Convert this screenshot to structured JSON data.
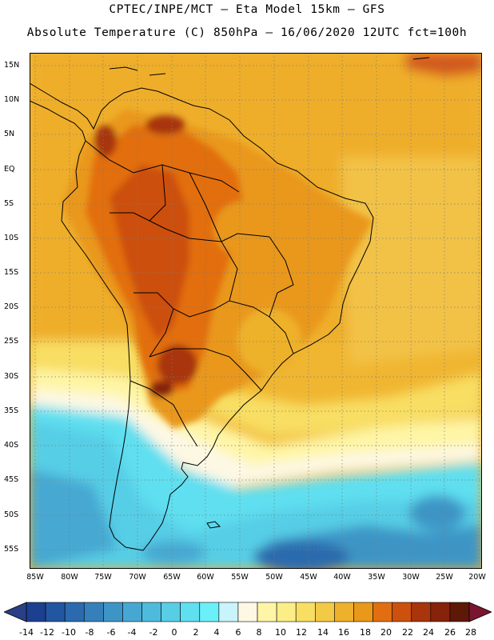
{
  "header": {
    "title_line1": "CPTEC/INPE/MCT –  Eta Model 15km – GFS",
    "title_line2": "Absolute Temperature (C) 850hPa – 16/06/2020 12UTC fct=100h"
  },
  "map": {
    "region": "South America",
    "variable": "Absolute Temperature",
    "units": "C",
    "level": "850hPa",
    "lat_labels": [
      "15N",
      "10N",
      "5N",
      "EQ",
      "5S",
      "10S",
      "15S",
      "20S",
      "25S",
      "30S",
      "35S",
      "40S",
      "45S",
      "50S",
      "55S"
    ],
    "lon_labels": [
      "85W",
      "80W",
      "75W",
      "70W",
      "65W",
      "60W",
      "55W",
      "50W",
      "45W",
      "40W",
      "35W",
      "30W",
      "25W",
      "20W"
    ]
  },
  "colorbar": {
    "labels": [
      "-14",
      "-12",
      "-10",
      "-8",
      "-6",
      "-4",
      "-2",
      "0",
      "2",
      "4",
      "6",
      "8",
      "10",
      "12",
      "14",
      "16",
      "18",
      "20",
      "22",
      "24",
      "26",
      "28"
    ],
    "colors": [
      "#1c3f8f",
      "#2356a0",
      "#2b6aae",
      "#3580bb",
      "#3d95c6",
      "#46a8d2",
      "#4fbbdc",
      "#57cee6",
      "#5fdff0",
      "#6af0f8",
      "#c9f4fb",
      "#fdf8e4",
      "#fef5a6",
      "#fcee86",
      "#f8de63",
      "#f3ca45",
      "#eeb12c",
      "#e9981a",
      "#e26e11",
      "#cc500e",
      "#a8350c",
      "#86230a",
      "#5e1808"
    ]
  }
}
